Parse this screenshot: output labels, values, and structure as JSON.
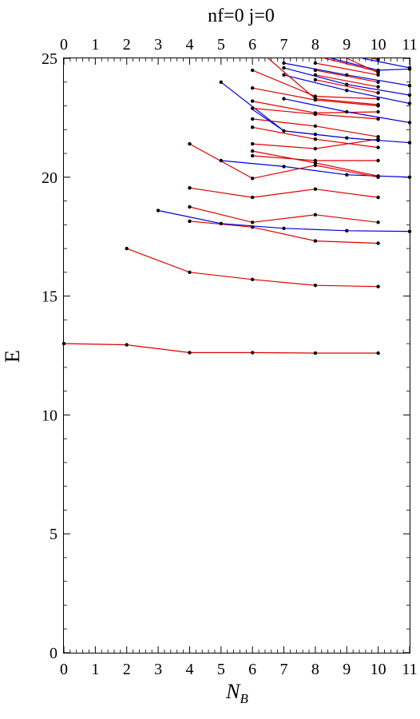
{
  "chart_data": {
    "type": "line",
    "title": "nf=0   j=0",
    "xlabel": "N",
    "xlabel_sub": "B",
    "ylabel": "E",
    "xlim": [
      0,
      11
    ],
    "ylim": [
      0,
      25
    ],
    "x_ticks": [
      "0",
      "1",
      "2",
      "3",
      "4",
      "5",
      "6",
      "7",
      "8",
      "9",
      "10",
      "11"
    ],
    "y_ticks": [
      "0",
      "5",
      "10",
      "15",
      "20",
      "25"
    ],
    "grid": false,
    "series": [
      {
        "color": "#e00000",
        "points": [
          [
            0,
            13.0
          ],
          [
            2,
            12.95
          ],
          [
            4,
            12.62
          ],
          [
            6,
            12.62
          ],
          [
            8,
            12.6
          ],
          [
            10,
            12.6
          ]
        ]
      },
      {
        "color": "#e00000",
        "points": [
          [
            2,
            17.0
          ],
          [
            4,
            16.0
          ],
          [
            6,
            15.7
          ],
          [
            8,
            15.45
          ],
          [
            10,
            15.4
          ]
        ]
      },
      {
        "color": "#e00000",
        "points": [
          [
            4,
            18.15
          ],
          [
            6,
            17.9
          ],
          [
            8,
            17.32
          ],
          [
            10,
            17.22
          ]
        ]
      },
      {
        "color": "#e00000",
        "points": [
          [
            4,
            18.75
          ],
          [
            6,
            18.1
          ],
          [
            8,
            18.42
          ],
          [
            10,
            18.1
          ]
        ]
      },
      {
        "color": "#e00000",
        "points": [
          [
            4,
            19.55
          ],
          [
            6,
            19.15
          ],
          [
            8,
            19.5
          ],
          [
            10,
            19.15
          ]
        ]
      },
      {
        "color": "#0000e0",
        "points": [
          [
            3,
            18.6
          ],
          [
            5,
            18.05
          ],
          [
            7,
            17.85
          ],
          [
            9,
            17.75
          ],
          [
            11,
            17.72
          ]
        ]
      },
      {
        "color": "#0000e0",
        "points": [
          [
            5,
            20.7
          ],
          [
            7,
            20.45
          ],
          [
            9,
            20.1
          ],
          [
            11,
            20.0
          ]
        ]
      },
      {
        "color": "#e00000",
        "points": [
          [
            4,
            21.4
          ],
          [
            6,
            19.95
          ],
          [
            8,
            20.5
          ],
          [
            10,
            20.0
          ]
        ]
      },
      {
        "color": "#e00000",
        "points": [
          [
            6,
            20.9
          ],
          [
            8,
            20.7
          ],
          [
            10,
            20.7
          ]
        ]
      },
      {
        "color": "#e00000",
        "points": [
          [
            6,
            21.1
          ],
          [
            8,
            20.6
          ],
          [
            10,
            20.05
          ]
        ]
      },
      {
        "color": "#e00000",
        "points": [
          [
            6,
            21.4
          ],
          [
            8,
            21.2
          ],
          [
            10,
            21.6
          ]
        ]
      },
      {
        "color": "#0000e0",
        "points": [
          [
            5,
            24.0
          ],
          [
            7,
            21.95
          ],
          [
            9,
            21.65
          ],
          [
            11,
            21.45
          ]
        ]
      },
      {
        "color": "#e00000",
        "points": [
          [
            6,
            22.1
          ],
          [
            8,
            21.6
          ],
          [
            10,
            21.25
          ]
        ]
      },
      {
        "color": "#e00000",
        "points": [
          [
            6,
            22.45
          ],
          [
            8,
            22.15
          ],
          [
            10,
            21.7
          ]
        ]
      },
      {
        "color": "#e00000",
        "points": [
          [
            6,
            22.9
          ],
          [
            8,
            22.65
          ],
          [
            10,
            22.45
          ]
        ]
      },
      {
        "color": "#e00000",
        "points": [
          [
            6,
            23.2
          ],
          [
            8,
            22.7
          ],
          [
            10,
            22.75
          ]
        ]
      },
      {
        "color": "#0000e0",
        "points": [
          [
            7,
            23.3
          ],
          [
            9,
            22.75
          ],
          [
            11,
            22.3
          ]
        ]
      },
      {
        "color": "#e00000",
        "points": [
          [
            6,
            23.75
          ],
          [
            8,
            23.25
          ],
          [
            10,
            23.0
          ]
        ]
      },
      {
        "color": "#e00000",
        "points": [
          [
            6,
            24.5
          ],
          [
            8,
            23.4
          ],
          [
            10,
            23.3
          ]
        ]
      },
      {
        "color": "#0000e0",
        "points": [
          [
            6,
            22.85
          ],
          [
            7,
            21.95
          ],
          [
            8,
            21.8
          ],
          [
            9,
            21.65
          ],
          [
            10,
            21.55
          ]
        ]
      },
      {
        "color": "#0000e0",
        "points": [
          [
            7,
            24.3
          ],
          [
            9,
            23.65
          ],
          [
            11,
            23.1
          ]
        ]
      },
      {
        "color": "#e00000",
        "points": [
          [
            8,
            24.1
          ],
          [
            10,
            23.55
          ]
        ]
      },
      {
        "color": "#e00000",
        "points": [
          [
            8,
            24.3
          ],
          [
            10,
            23.8
          ]
        ]
      },
      {
        "color": "#e00000",
        "points": [
          [
            8,
            24.5
          ],
          [
            10,
            24.0
          ]
        ]
      },
      {
        "color": "#0000e0",
        "points": [
          [
            7,
            24.6
          ],
          [
            9,
            23.9
          ],
          [
            11,
            23.45
          ]
        ]
      },
      {
        "color": "#0000e0",
        "points": [
          [
            7,
            24.8
          ],
          [
            9,
            24.3
          ],
          [
            11,
            23.85
          ]
        ]
      },
      {
        "color": "#e00000",
        "points": [
          [
            6.5,
            25.0
          ],
          [
            8,
            23.3
          ],
          [
            10,
            23.05
          ]
        ]
      },
      {
        "color": "#e00000",
        "points": [
          [
            8,
            24.8
          ],
          [
            10,
            24.3
          ]
        ]
      },
      {
        "color": "#0000e0",
        "points": [
          [
            8.5,
            25.0
          ],
          [
            10,
            24.5
          ],
          [
            11,
            24.55
          ]
        ]
      },
      {
        "color": "#e00000",
        "points": [
          [
            8.3,
            25.0
          ],
          [
            10,
            24.45
          ]
        ]
      },
      {
        "color": "#0000e0",
        "points": [
          [
            9.5,
            25.0
          ],
          [
            11,
            24.6
          ]
        ]
      },
      {
        "color": "#e00000",
        "points": [
          [
            9.0,
            25.0
          ],
          [
            10,
            24.4
          ]
        ]
      },
      {
        "color": "#e00000",
        "points": [
          [
            9.8,
            25.0
          ],
          [
            10,
            24.95
          ]
        ]
      }
    ],
    "points": [
      [
        0,
        13.0
      ],
      [
        2,
        12.95
      ],
      [
        4,
        12.62
      ],
      [
        6,
        12.62
      ],
      [
        8,
        12.6
      ],
      [
        10,
        12.6
      ],
      [
        2,
        17.0
      ],
      [
        4,
        16.0
      ],
      [
        6,
        15.7
      ],
      [
        8,
        15.45
      ],
      [
        10,
        15.4
      ],
      [
        4,
        18.15
      ],
      [
        6,
        17.9
      ],
      [
        8,
        17.32
      ],
      [
        10,
        17.22
      ],
      [
        4,
        18.75
      ],
      [
        6,
        18.1
      ],
      [
        8,
        18.42
      ],
      [
        10,
        18.1
      ],
      [
        4,
        19.55
      ],
      [
        6,
        19.15
      ],
      [
        8,
        19.5
      ],
      [
        10,
        19.15
      ],
      [
        3,
        18.6
      ],
      [
        5,
        18.05
      ],
      [
        7,
        17.85
      ],
      [
        9,
        17.75
      ],
      [
        11,
        17.72
      ],
      [
        5,
        20.7
      ],
      [
        7,
        20.45
      ],
      [
        9,
        20.1
      ],
      [
        11,
        20.0
      ],
      [
        4,
        21.4
      ],
      [
        6,
        19.95
      ],
      [
        8,
        20.5
      ],
      [
        10,
        20.0
      ],
      [
        6,
        20.9
      ],
      [
        8,
        20.7
      ],
      [
        10,
        20.7
      ],
      [
        6,
        21.1
      ],
      [
        8,
        20.6
      ],
      [
        10,
        20.05
      ],
      [
        6,
        21.4
      ],
      [
        8,
        21.2
      ],
      [
        10,
        21.6
      ],
      [
        5,
        24.0
      ],
      [
        7,
        21.95
      ],
      [
        9,
        21.65
      ],
      [
        11,
        21.45
      ],
      [
        6,
        22.1
      ],
      [
        8,
        21.6
      ],
      [
        10,
        21.25
      ],
      [
        6,
        22.45
      ],
      [
        8,
        22.15
      ],
      [
        10,
        21.7
      ],
      [
        6,
        22.9
      ],
      [
        8,
        22.65
      ],
      [
        10,
        22.45
      ],
      [
        6,
        23.2
      ],
      [
        8,
        22.7
      ],
      [
        10,
        22.75
      ],
      [
        7,
        23.3
      ],
      [
        9,
        22.75
      ],
      [
        11,
        22.3
      ],
      [
        6,
        23.75
      ],
      [
        8,
        23.25
      ],
      [
        10,
        23.0
      ],
      [
        6,
        24.5
      ],
      [
        8,
        23.4
      ],
      [
        10,
        23.3
      ],
      [
        8,
        21.8
      ],
      [
        10,
        21.55
      ],
      [
        7,
        24.3
      ],
      [
        9,
        23.65
      ],
      [
        11,
        23.1
      ],
      [
        8,
        24.1
      ],
      [
        10,
        23.55
      ],
      [
        8,
        24.3
      ],
      [
        10,
        23.8
      ],
      [
        8,
        24.5
      ],
      [
        10,
        24.0
      ],
      [
        7,
        24.6
      ],
      [
        9,
        23.9
      ],
      [
        11,
        23.45
      ],
      [
        7,
        24.8
      ],
      [
        9,
        24.3
      ],
      [
        11,
        23.85
      ],
      [
        6.5,
        25.0
      ],
      [
        8,
        23.3
      ],
      [
        10,
        23.05
      ],
      [
        8,
        24.8
      ],
      [
        10,
        24.3
      ],
      [
        8.5,
        25.0
      ],
      [
        10,
        24.5
      ],
      [
        11,
        24.55
      ],
      [
        8.3,
        25.0
      ],
      [
        10,
        24.45
      ],
      [
        9.5,
        25.0
      ],
      [
        11,
        24.6
      ],
      [
        9.0,
        25.0
      ],
      [
        10,
        24.4
      ],
      [
        9.8,
        25.0
      ],
      [
        10,
        24.95
      ]
    ]
  }
}
